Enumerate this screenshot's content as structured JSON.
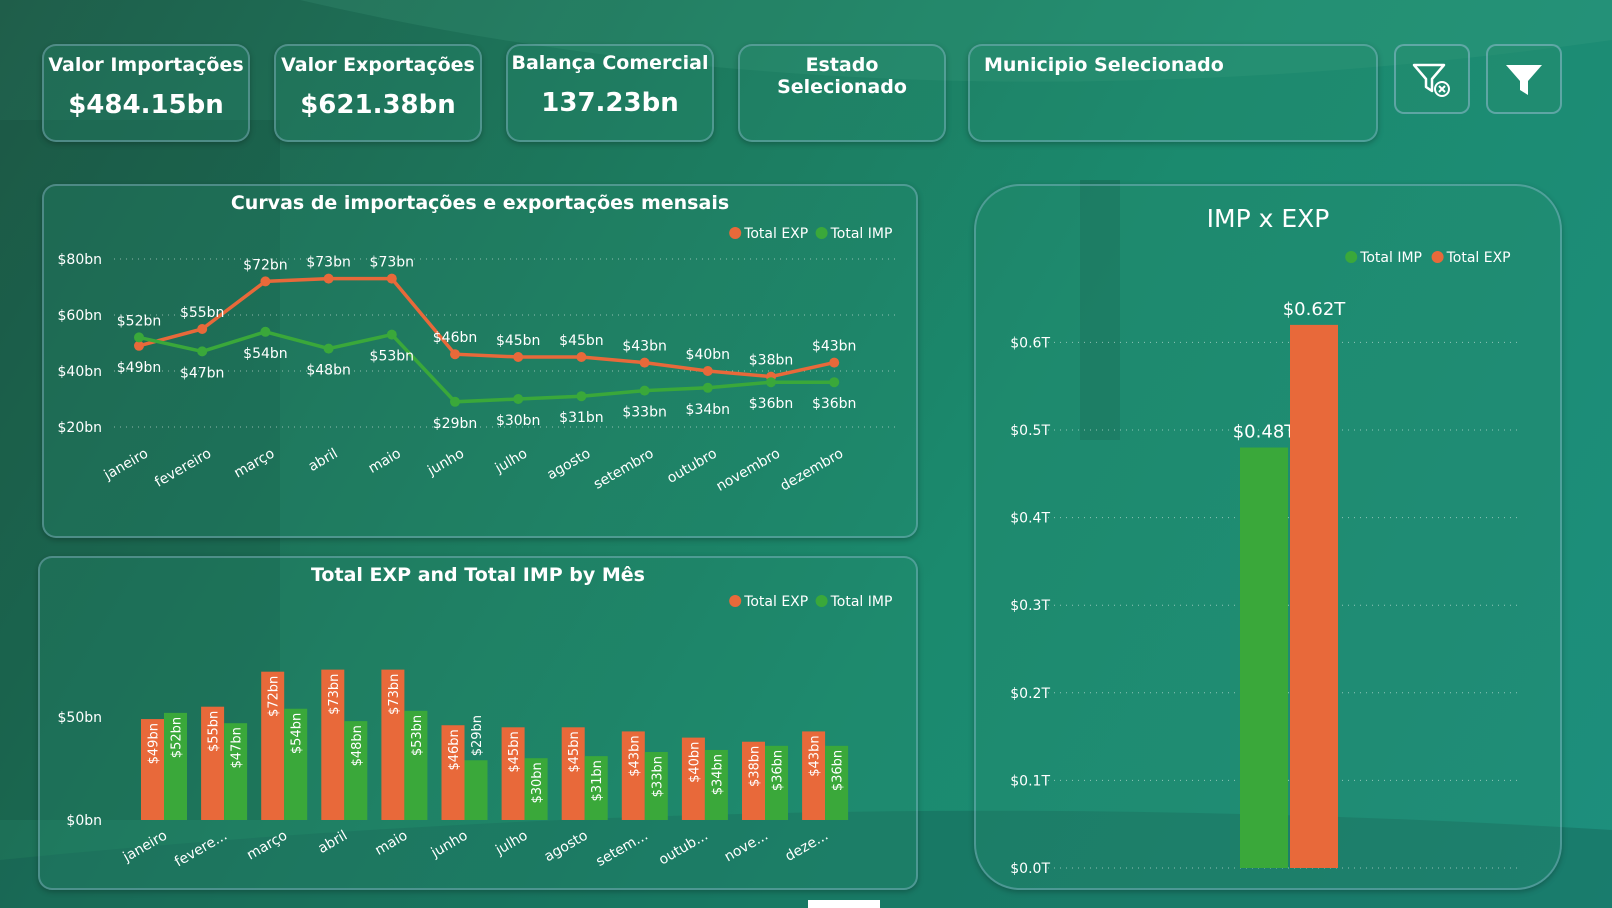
{
  "kpis": [
    {
      "label": "Valor Importações",
      "value": "$484.15bn"
    },
    {
      "label": "Valor Exportações",
      "value": "$621.38bn"
    },
    {
      "label": "Balança Comercial",
      "value": "137.23bn"
    },
    {
      "label": "Estado Selecionado",
      "value": ""
    },
    {
      "label": "Municipio Selecionado",
      "value": ""
    }
  ],
  "buttons": {
    "clear_filters_icon": "filter-clear-icon",
    "filter_icon": "filter-icon"
  },
  "colors": {
    "exp": "#e8693a",
    "imp": "#3aa83a"
  },
  "line_chart": {
    "title": "Curvas de importações e exportações mensais",
    "legend": [
      "Total EXP",
      "Total IMP"
    ],
    "yticks": [
      "$20bn",
      "$40bn",
      "$60bn",
      "$80bn"
    ]
  },
  "bar_chart": {
    "title": "Total EXP and Total IMP by Mês",
    "legend": [
      "Total EXP",
      "Total IMP"
    ],
    "yticks": [
      "$0bn",
      "$50bn"
    ],
    "categories_short": [
      "janeiro",
      "fevere...",
      "março",
      "abril",
      "maio",
      "junho",
      "julho",
      "agosto",
      "setem...",
      "outub...",
      "nove...",
      "deze..."
    ]
  },
  "imp_exp_chart": {
    "title": "IMP x EXP",
    "legend": [
      "Total IMP",
      "Total EXP"
    ],
    "yticks": [
      "$0.0T",
      "$0.1T",
      "$0.2T",
      "$0.3T",
      "$0.4T",
      "$0.5T",
      "$0.6T"
    ],
    "labels": [
      "$0.48T",
      "$0.62T"
    ]
  },
  "chart_data": [
    {
      "type": "line",
      "title": "Curvas de importações e exportações mensais",
      "categories": [
        "janeiro",
        "fevereiro",
        "março",
        "abril",
        "maio",
        "junho",
        "julho",
        "agosto",
        "setembro",
        "outubro",
        "novembro",
        "dezembro"
      ],
      "series": [
        {
          "name": "Total EXP",
          "values": [
            49,
            55,
            72,
            73,
            73,
            46,
            45,
            45,
            43,
            40,
            38,
            43
          ],
          "labels": [
            "$49bn",
            "$55bn",
            "$72bn",
            "$73bn",
            "$73bn",
            "$46bn",
            "$45bn",
            "$45bn",
            "$43bn",
            "$40bn",
            "$38bn",
            "$43bn"
          ]
        },
        {
          "name": "Total IMP",
          "values": [
            52,
            47,
            54,
            48,
            53,
            29,
            30,
            31,
            33,
            34,
            36,
            36
          ],
          "labels": [
            "$52bn",
            "$47bn",
            "$54bn",
            "$48bn",
            "$53bn",
            "$29bn",
            "$30bn",
            "$31bn",
            "$33bn",
            "$34bn",
            "$36bn",
            "$36bn"
          ]
        }
      ],
      "ylim": [
        20,
        80
      ]
    },
    {
      "type": "bar",
      "title": "Total EXP and Total IMP by Mês",
      "categories": [
        "janeiro",
        "fevereiro",
        "março",
        "abril",
        "maio",
        "junho",
        "julho",
        "agosto",
        "setembro",
        "outubro",
        "novembro",
        "dezembro"
      ],
      "series": [
        {
          "name": "Total EXP",
          "values": [
            49,
            55,
            72,
            73,
            73,
            46,
            45,
            45,
            43,
            40,
            38,
            43
          ],
          "labels": [
            "$49bn",
            "$55bn",
            "$72bn",
            "$73bn",
            "$73bn",
            "$46bn",
            "$45bn",
            "$45bn",
            "$43bn",
            "$40bn",
            "$38bn",
            "$43bn"
          ]
        },
        {
          "name": "Total IMP",
          "values": [
            52,
            47,
            54,
            48,
            53,
            29,
            30,
            31,
            33,
            34,
            36,
            36
          ],
          "labels": [
            "$52bn",
            "$47bn",
            "$54bn",
            "$48bn",
            "$53bn",
            "$29bn",
            "$30bn",
            "$31bn",
            "$33bn",
            "$34bn",
            "$36bn",
            "$36bn"
          ]
        }
      ],
      "ylim": [
        0,
        75
      ]
    },
    {
      "type": "bar",
      "title": "IMP x EXP",
      "categories": [
        "Total IMP",
        "Total EXP"
      ],
      "values": [
        0.48,
        0.62
      ],
      "ylim": [
        0,
        0.6
      ]
    }
  ]
}
